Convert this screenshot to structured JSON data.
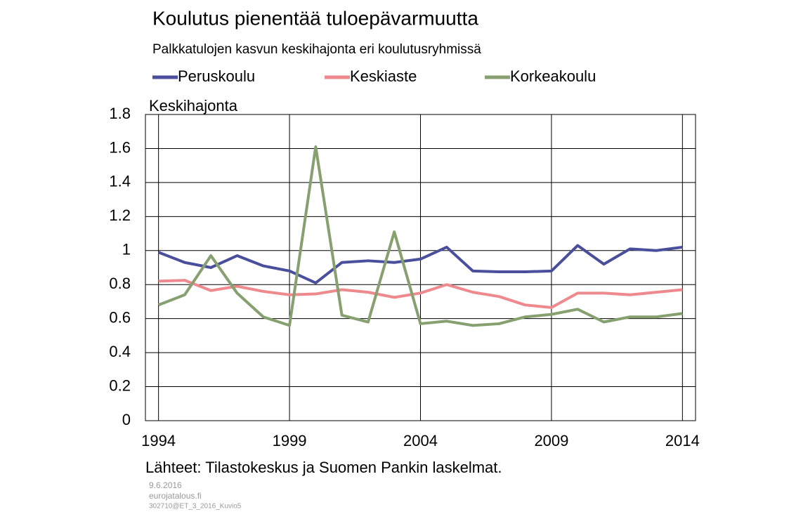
{
  "chart_data": {
    "type": "line",
    "title": "Koulutus pienentää tuloepävarmuutta",
    "subtitle": "Palkkatulojen kasvun keskihajonta eri koulutusryhmissä",
    "y_label": "Keskihajonta",
    "source": "Lähteet: Tilastokeskus ja Suomen Pankin laskelmat.",
    "footer": [
      "9.6.2016",
      "eurojatalous.fi",
      "302710@ET_3_2016_Kuvio5"
    ],
    "x": [
      1994,
      1995,
      1996,
      1997,
      1998,
      1999,
      2000,
      2001,
      2002,
      2003,
      2004,
      2005,
      2006,
      2007,
      2008,
      2009,
      2010,
      2011,
      2012,
      2013,
      2014
    ],
    "series": [
      {
        "name": "Peruskoulu",
        "color": "#4a4f9c",
        "values": [
          0.99,
          0.93,
          0.9,
          0.97,
          0.91,
          0.88,
          0.81,
          0.93,
          0.94,
          0.93,
          0.95,
          1.02,
          0.88,
          0.875,
          0.875,
          0.88,
          1.03,
          0.92,
          1.01,
          1.0,
          1.02
        ]
      },
      {
        "name": "Keskiaste",
        "color": "#ee8a8e",
        "values": [
          0.82,
          0.825,
          0.765,
          0.79,
          0.76,
          0.74,
          0.745,
          0.77,
          0.755,
          0.725,
          0.75,
          0.8,
          0.755,
          0.73,
          0.68,
          0.665,
          0.75,
          0.75,
          0.74,
          0.755,
          0.77
        ]
      },
      {
        "name": "Korkeakoulu",
        "color": "#86a070",
        "values": [
          0.68,
          0.74,
          0.97,
          0.75,
          0.61,
          0.56,
          1.61,
          0.62,
          0.58,
          1.11,
          0.57,
          0.585,
          0.56,
          0.57,
          0.61,
          0.625,
          0.655,
          0.58,
          0.61,
          0.61,
          0.63
        ]
      }
    ],
    "xlim": [
      1993.5,
      2014.5
    ],
    "xticks": [
      1994,
      1999,
      2004,
      2009,
      2014
    ],
    "ylim": [
      0,
      1.8
    ],
    "yticks": [
      0,
      0.2,
      0.4,
      0.6,
      0.8,
      1,
      1.2,
      1.4,
      1.6,
      1.8
    ],
    "grid": true
  }
}
